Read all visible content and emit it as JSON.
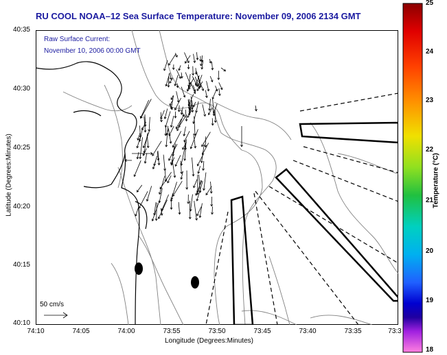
{
  "title": "RU COOL  NOAA–12  Sea Surface Temperature:  November 09, 2006 2134 GMT",
  "current_note": {
    "line1": "Raw Surface Current:",
    "line2": "November 10, 2006 00:00 GMT"
  },
  "y_axis": {
    "label": "Latitude (Degrees:Minutes)",
    "ticks": [
      "40:35",
      "40:30",
      "40:25",
      "40:20",
      "40:15",
      "40:10"
    ]
  },
  "x_axis": {
    "label": "Longitude (Degrees:Minutes)",
    "ticks": [
      "74:10",
      "74:05",
      "74:00",
      "73:55",
      "73:50",
      "73:45",
      "73:40",
      "73:35",
      "73:3"
    ]
  },
  "colorbar": {
    "label": "Temperature (°C)",
    "ticks": [
      "25",
      "24",
      "23",
      "22",
      "21",
      "20",
      "19",
      "18"
    ]
  },
  "scale_bar": {
    "label": "50 cm/s"
  },
  "colors": {
    "title_text": "#1a1aa0",
    "coast": "#000000",
    "bathymetry": "#808080"
  }
}
